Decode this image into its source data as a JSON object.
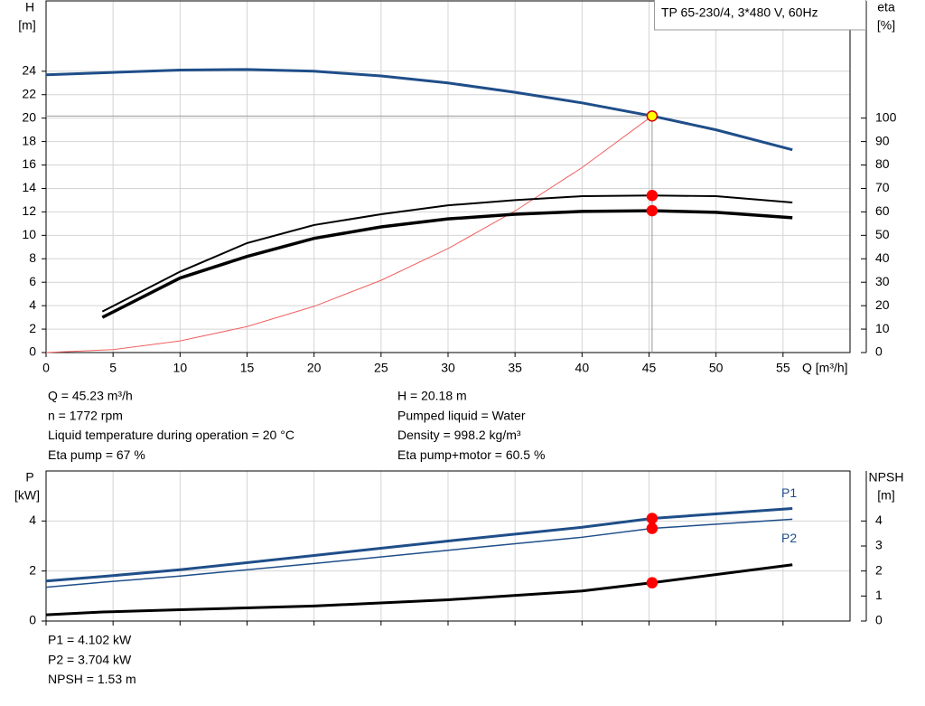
{
  "chart_data": [
    {
      "type": "line",
      "title": "TP 65-230/4, 3*480 V, 60Hz",
      "y_label": "H",
      "y_unit": "[m]",
      "y2_label": "eta",
      "y2_unit": "[%]",
      "x_label": "Q [m³/h]",
      "xlim": [
        0,
        60
      ],
      "xticks": [
        0,
        5,
        10,
        15,
        20,
        25,
        30,
        35,
        40,
        45,
        50,
        55
      ],
      "ylim": [
        0,
        30
      ],
      "yticks": [
        0,
        2,
        4,
        6,
        8,
        10,
        12,
        14,
        16,
        18,
        20,
        22,
        24
      ],
      "y2lim": [
        0,
        150
      ],
      "y2ticks": [
        0,
        10,
        20,
        30,
        40,
        50,
        60,
        70,
        80,
        90,
        100
      ],
      "grid": true,
      "series": [
        {
          "color": "#1f4e89",
          "width": 3,
          "x": [
            0,
            5,
            10,
            15,
            20,
            25,
            30,
            35,
            40,
            45.23,
            50,
            55.7
          ],
          "values": [
            23.7,
            23.9,
            24.1,
            24.15,
            24.0,
            23.6,
            23.0,
            22.2,
            21.3,
            20.18,
            19.0,
            17.3
          ]
        },
        {
          "color": "#f06060",
          "width": 1,
          "x": [
            0,
            5,
            10,
            15,
            20,
            25,
            30,
            35,
            40,
            45.23
          ],
          "values": [
            0,
            0.25,
            0.99,
            2.22,
            3.94,
            6.16,
            8.87,
            12.08,
            15.78,
            20.18
          ]
        },
        {
          "color": "#000000",
          "width": 2,
          "axis": "y2",
          "x": [
            4.2,
            10,
            15,
            20,
            25,
            30,
            35,
            40,
            45.23,
            50,
            55.7
          ],
          "values": [
            17.5,
            34.5,
            46.7,
            54.4,
            59,
            62.8,
            65,
            66.7,
            67,
            66.7,
            64
          ]
        },
        {
          "color": "#000000",
          "width": 3.5,
          "axis": "y2",
          "x": [
            4.2,
            10,
            15,
            20,
            25,
            30,
            35,
            40,
            45.23,
            50,
            55.7
          ],
          "values": [
            15,
            31.8,
            41,
            48.7,
            53.6,
            57,
            59,
            60.2,
            60.5,
            59.8,
            57.5
          ]
        }
      ],
      "markers": [
        {
          "x": 45.23,
          "y": 20.18,
          "color": "#ffff00",
          "crosshair": true
        },
        {
          "x": 45.23,
          "y": 67,
          "axis": "y2",
          "color": "#ff0000"
        },
        {
          "x": 45.23,
          "y": 60.5,
          "axis": "y2",
          "color": "#ff0000"
        }
      ],
      "notes_left": [
        "Q = 45.23 m³/h",
        "n = 1772 rpm",
        "Liquid temperature during operation = 20 °C",
        "Eta pump = 67 %"
      ],
      "notes_right": [
        "H = 20.18 m",
        "Pumped liquid = Water",
        "Density = 998.2 kg/m³",
        "Eta pump+motor = 60.5 %"
      ]
    },
    {
      "type": "line",
      "y_label": "P",
      "y_unit": "[kW]",
      "y2_label": "NPSH",
      "y2_unit": "[m]",
      "xlim": [
        0,
        60
      ],
      "xticks": [
        0,
        5,
        10,
        15,
        20,
        25,
        30,
        35,
        40,
        45,
        50,
        55
      ],
      "ylim": [
        0,
        6
      ],
      "yticks": [
        0,
        2,
        4
      ],
      "y2lim": [
        0,
        6
      ],
      "y2ticks": [
        0,
        1,
        2,
        3,
        4
      ],
      "grid": true,
      "series": [
        {
          "name": "P1",
          "color": "#1f4e89",
          "width": 3,
          "x": [
            0,
            4.2,
            10,
            20,
            30,
            40,
            45.23,
            55.7
          ],
          "values": [
            1.6,
            1.78,
            2.05,
            2.62,
            3.2,
            3.75,
            4.102,
            4.5
          ]
        },
        {
          "name": "P2",
          "color": "#1f4e89",
          "width": 1.5,
          "x": [
            0,
            4.2,
            10,
            20,
            30,
            40,
            45.23,
            55.7
          ],
          "values": [
            1.35,
            1.55,
            1.8,
            2.3,
            2.83,
            3.35,
            3.704,
            4.07
          ]
        },
        {
          "color": "#000000",
          "width": 3,
          "axis": "y2",
          "x": [
            0,
            4.2,
            10,
            20,
            30,
            40,
            45.23,
            55.7
          ],
          "values": [
            0.25,
            0.36,
            0.45,
            0.6,
            0.85,
            1.2,
            1.53,
            2.25
          ]
        }
      ],
      "markers": [
        {
          "x": 45.23,
          "y": 4.102,
          "color": "#ff0000"
        },
        {
          "x": 45.23,
          "y": 3.704,
          "color": "#ff0000"
        },
        {
          "x": 45.23,
          "y": 1.53,
          "axis": "y2",
          "color": "#ff0000"
        }
      ],
      "notes_left": [
        "P1 = 4.102 kW",
        "P2 = 3.704 kW",
        "NPSH = 1.53 m"
      ]
    }
  ]
}
